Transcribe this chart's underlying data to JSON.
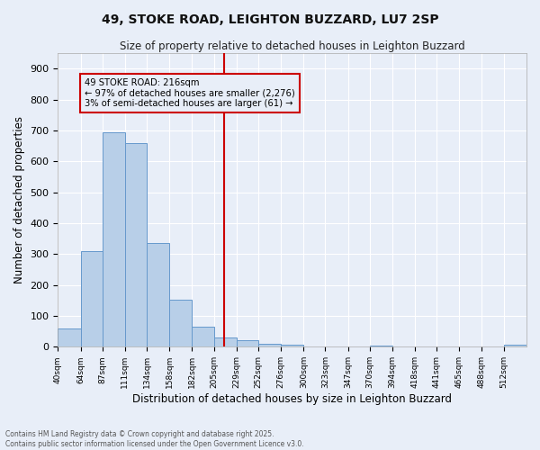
{
  "title": "49, STOKE ROAD, LEIGHTON BUZZARD, LU7 2SP",
  "subtitle": "Size of property relative to detached houses in Leighton Buzzard",
  "xlabel": "Distribution of detached houses by size in Leighton Buzzard",
  "ylabel": "Number of detached properties",
  "bar_edges": [
    40,
    64,
    87,
    111,
    134,
    158,
    182,
    205,
    229,
    252,
    276,
    300,
    323,
    347,
    370,
    394,
    418,
    441,
    465,
    488,
    512
  ],
  "bar_heights": [
    58,
    310,
    693,
    660,
    335,
    152,
    65,
    30,
    20,
    10,
    8,
    0,
    0,
    0,
    5,
    0,
    0,
    0,
    0,
    0,
    8
  ],
  "bar_color": "#b8cfe8",
  "bar_edge_color": "#6699cc",
  "property_line_x": 216,
  "annotation_title": "49 STOKE ROAD: 216sqm",
  "annotation_line1": "← 97% of detached houses are smaller (2,276)",
  "annotation_line2": "3% of semi-detached houses are larger (61) →",
  "annotation_box_color": "#cc0000",
  "vline_color": "#cc0000",
  "background_color": "#e8eef8",
  "grid_color": "#ffffff",
  "footnote1": "Contains HM Land Registry data © Crown copyright and database right 2025.",
  "footnote2": "Contains public sector information licensed under the Open Government Licence v3.0.",
  "ylim": [
    0,
    950
  ],
  "yticks": [
    0,
    100,
    200,
    300,
    400,
    500,
    600,
    700,
    800,
    900
  ]
}
